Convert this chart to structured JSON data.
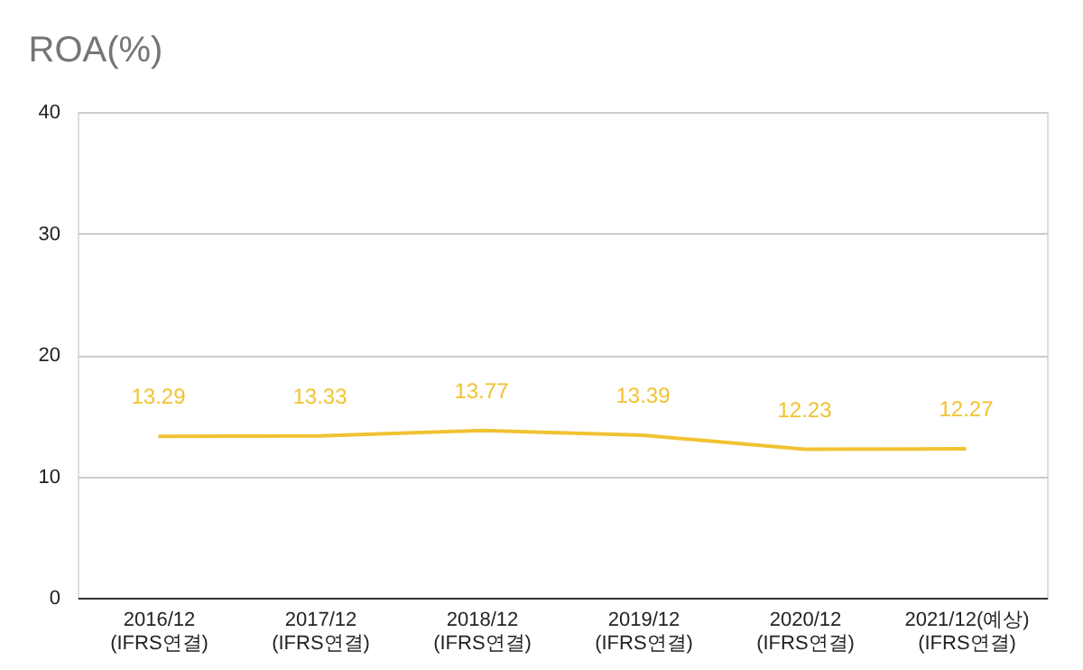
{
  "chart_data": {
    "type": "line",
    "title": "ROA(%)",
    "categories": [
      "2016/12\n(IFRS연결)",
      "2017/12\n(IFRS연결)",
      "2018/12\n(IFRS연결)",
      "2019/12\n(IFRS연결)",
      "2020/12\n(IFRS연결)",
      "2021/12(예상)\n(IFRS연결)"
    ],
    "series": [
      {
        "color": "#f1c232",
        "values": [
          13.29,
          13.33,
          13.77,
          13.39,
          12.23,
          12.27
        ]
      }
    ],
    "ylim": [
      0,
      40
    ],
    "yticks": [
      0,
      10,
      20,
      30,
      40
    ],
    "grid": "y",
    "data_labels": true,
    "marker": "none",
    "line_style": "solid"
  }
}
